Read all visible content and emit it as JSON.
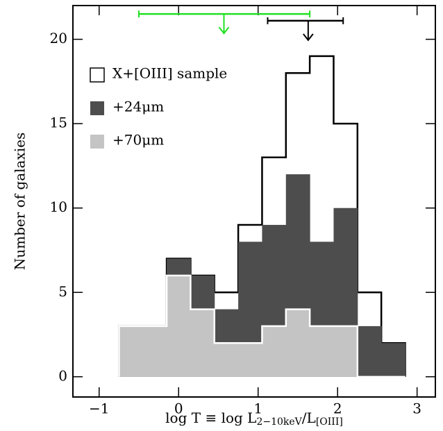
{
  "chart_data": {
    "type": "histogram",
    "x_label": {
      "main": "log T ≡ log L",
      "sub1": "2−10keV",
      "mid": "/L",
      "sub2": "[OIII]"
    },
    "y_label": "Number of galaxies",
    "bins": [
      -0.75,
      -0.45,
      -0.15,
      0.15,
      0.45,
      0.75,
      1.05,
      1.35,
      1.65,
      1.95,
      2.25,
      2.55,
      2.85
    ],
    "series": [
      {
        "name": "X+[OIII] sample",
        "color": "#ffffff",
        "stroke": "#000000",
        "values": [
          3,
          3,
          7,
          6,
          5,
          9,
          13,
          18,
          19,
          15,
          5,
          2
        ]
      },
      {
        "name": "+24μm",
        "color": "#4d4d4d",
        "stroke": "none",
        "values": [
          3,
          3,
          7,
          6,
          4,
          8,
          9,
          12,
          8,
          10,
          3,
          2
        ]
      },
      {
        "name": "+70μm",
        "color": "#c4c4c4",
        "stroke": "#ffffff",
        "values": [
          3,
          3,
          6,
          4,
          2,
          2,
          3,
          4,
          3,
          3,
          0,
          0
        ]
      }
    ],
    "xlim": [
      -1.33,
      3.23
    ],
    "ylim": [
      -1.2,
      22
    ],
    "xticks": [
      {
        "value": -1,
        "label": "−1"
      },
      0,
      1,
      2,
      3
    ],
    "yticks": [
      0,
      5,
      10,
      15,
      20
    ],
    "legend": "upper left",
    "limits": [
      {
        "low": -0.5,
        "value": 0.57,
        "high": 1.65,
        "y": 21.5,
        "color": "#22e022"
      },
      {
        "low": 1.12,
        "value": 1.63,
        "high": 2.07,
        "y": 21.1,
        "color": "#000000"
      }
    ]
  }
}
